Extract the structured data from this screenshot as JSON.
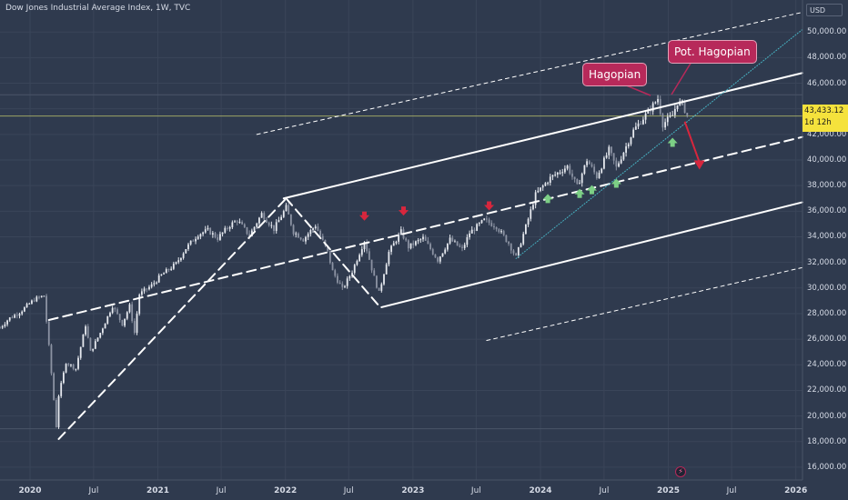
{
  "header": {
    "title": "Dow Jones Industrial Average Index, 1W, TVC",
    "currency": "USD"
  },
  "price_box": {
    "price": "43,433.12",
    "countdown": "1d 12h"
  },
  "annotations": {
    "callout_left": "Hagopian",
    "callout_right": "Pot. Hagopian",
    "flash_icon": "lightning-icon"
  },
  "colors": {
    "background": "#2f3a4e",
    "channel": "#ffffff",
    "candle": "#e6e9ef",
    "down_arrow": "#d7263d",
    "up_arrow": "#7ccf85",
    "callout": "#b7295a",
    "price_line": "#9da466",
    "dotted_trend": "#46b0c0"
  },
  "chart_data": {
    "type": "candlestick",
    "title": "Dow Jones Industrial Average Index, 1W, TVC",
    "y_axis_unit": "USD",
    "ylim": [
      15000,
      52500
    ],
    "y_ticks": [
      "16,000.00",
      "18,000.00",
      "20,000.00",
      "22,000.00",
      "24,000.00",
      "26,000.00",
      "28,000.00",
      "30,000.00",
      "32,000.00",
      "34,000.00",
      "36,000.00",
      "38,000.00",
      "40,000.00",
      "42,000.00",
      "44,000.00",
      "46,000.00",
      "48,000.00",
      "50,000.00"
    ],
    "x_ticks": [
      {
        "label": "2020",
        "date": "2020-01-01",
        "year": true
      },
      {
        "label": "Jul",
        "date": "2020-07-01",
        "year": false
      },
      {
        "label": "2021",
        "date": "2021-01-01",
        "year": true
      },
      {
        "label": "Jul",
        "date": "2021-07-01",
        "year": false
      },
      {
        "label": "2022",
        "date": "2022-01-01",
        "year": true
      },
      {
        "label": "Jul",
        "date": "2022-07-01",
        "year": false
      },
      {
        "label": "2023",
        "date": "2023-01-01",
        "year": true
      },
      {
        "label": "Jul",
        "date": "2023-07-01",
        "year": false
      },
      {
        "label": "2024",
        "date": "2024-01-01",
        "year": true
      },
      {
        "label": "Jul",
        "date": "2024-07-01",
        "year": false
      },
      {
        "label": "2025",
        "date": "2025-01-01",
        "year": true
      },
      {
        "label": "Jul",
        "date": "2025-07-01",
        "year": false
      },
      {
        "label": "2026",
        "date": "2026-01-01",
        "year": true
      }
    ],
    "xlim": [
      "2019-10-07",
      "2026-01-20"
    ],
    "last_price": 43433.12,
    "grid": true,
    "weekly_closes": [
      {
        "date": "2019-10-07",
        "close": 26900
      },
      {
        "date": "2019-11-01",
        "close": 27600
      },
      {
        "date": "2019-12-02",
        "close": 28100
      },
      {
        "date": "2020-01-13",
        "close": 29100
      },
      {
        "date": "2020-02-10",
        "close": 29400
      },
      {
        "date": "2020-02-24",
        "close": 25400
      },
      {
        "date": "2020-03-16",
        "close": 19200
      },
      {
        "date": "2020-03-23",
        "close": 21600
      },
      {
        "date": "2020-04-13",
        "close": 24200
      },
      {
        "date": "2020-05-11",
        "close": 23700
      },
      {
        "date": "2020-06-08",
        "close": 27100
      },
      {
        "date": "2020-06-22",
        "close": 25000
      },
      {
        "date": "2020-07-20",
        "close": 26500
      },
      {
        "date": "2020-08-24",
        "close": 28600
      },
      {
        "date": "2020-09-21",
        "close": 27200
      },
      {
        "date": "2020-10-12",
        "close": 28600
      },
      {
        "date": "2020-10-26",
        "close": 26500
      },
      {
        "date": "2020-11-09",
        "close": 29500
      },
      {
        "date": "2020-12-14",
        "close": 30200
      },
      {
        "date": "2021-01-11",
        "close": 31000
      },
      {
        "date": "2021-02-22",
        "close": 31900
      },
      {
        "date": "2021-03-22",
        "close": 33100
      },
      {
        "date": "2021-04-26",
        "close": 34200
      },
      {
        "date": "2021-05-24",
        "close": 34500
      },
      {
        "date": "2021-06-21",
        "close": 33900
      },
      {
        "date": "2021-07-26",
        "close": 34900
      },
      {
        "date": "2021-08-16",
        "close": 35300
      },
      {
        "date": "2021-09-20",
        "close": 34100
      },
      {
        "date": "2021-10-25",
        "close": 35800
      },
      {
        "date": "2021-11-29",
        "close": 34600
      },
      {
        "date": "2022-01-03",
        "close": 36300
      },
      {
        "date": "2022-01-24",
        "close": 34400
      },
      {
        "date": "2022-02-21",
        "close": 33800
      },
      {
        "date": "2022-03-28",
        "close": 34900
      },
      {
        "date": "2022-05-02",
        "close": 32800
      },
      {
        "date": "2022-05-16",
        "close": 31300
      },
      {
        "date": "2022-06-13",
        "close": 29900
      },
      {
        "date": "2022-07-11",
        "close": 31300
      },
      {
        "date": "2022-08-15",
        "close": 33700
      },
      {
        "date": "2022-09-12",
        "close": 30800
      },
      {
        "date": "2022-09-26",
        "close": 29600
      },
      {
        "date": "2022-10-24",
        "close": 32800
      },
      {
        "date": "2022-11-28",
        "close": 34400
      },
      {
        "date": "2022-12-19",
        "close": 33200
      },
      {
        "date": "2023-01-30",
        "close": 33900
      },
      {
        "date": "2023-03-13",
        "close": 32200
      },
      {
        "date": "2023-04-17",
        "close": 33800
      },
      {
        "date": "2023-05-22",
        "close": 33000
      },
      {
        "date": "2023-06-12",
        "close": 34300
      },
      {
        "date": "2023-07-24",
        "close": 35300
      },
      {
        "date": "2023-08-28",
        "close": 34800
      },
      {
        "date": "2023-10-02",
        "close": 33500
      },
      {
        "date": "2023-10-23",
        "close": 32400
      },
      {
        "date": "2023-11-27",
        "close": 35400
      },
      {
        "date": "2023-12-18",
        "close": 37300
      },
      {
        "date": "2024-01-29",
        "close": 38600
      },
      {
        "date": "2024-03-18",
        "close": 39500
      },
      {
        "date": "2024-04-15",
        "close": 37900
      },
      {
        "date": "2024-05-13",
        "close": 40000
      },
      {
        "date": "2024-06-10",
        "close": 38700
      },
      {
        "date": "2024-07-15",
        "close": 40800
      },
      {
        "date": "2024-08-05",
        "close": 39400
      },
      {
        "date": "2024-09-23",
        "close": 42300
      },
      {
        "date": "2024-11-11",
        "close": 44000
      },
      {
        "date": "2024-12-02",
        "close": 44800
      },
      {
        "date": "2024-12-16",
        "close": 42800
      },
      {
        "date": "2025-01-13",
        "close": 43500
      },
      {
        "date": "2025-01-27",
        "close": 44500
      },
      {
        "date": "2025-02-10",
        "close": 44400
      },
      {
        "date": "2025-02-24",
        "close": 43433
      }
    ],
    "trendlines": [
      {
        "name": "upper-channel",
        "style": "solid",
        "from": {
          "date": "2021-12-27",
          "value": 37000
        },
        "to": {
          "date": "2026-01-20",
          "value": 46800
        }
      },
      {
        "name": "middle-channel",
        "style": "dashed",
        "from": {
          "date": "2020-02-24",
          "value": 27500
        },
        "to": {
          "date": "2026-01-20",
          "value": 41800
        }
      },
      {
        "name": "lower-channel",
        "style": "solid",
        "from": {
          "date": "2022-10-03",
          "value": 28500
        },
        "to": {
          "date": "2026-01-20",
          "value": 36700
        }
      },
      {
        "name": "outer-upper",
        "style": "dashed-thin",
        "from": {
          "date": "2021-10-11",
          "value": 42000
        },
        "to": {
          "date": "2026-01-13",
          "value": 51500
        }
      },
      {
        "name": "outer-lower",
        "style": "dashed-thin",
        "from": {
          "date": "2023-07-31",
          "value": 25900
        },
        "to": {
          "date": "2026-01-20",
          "value": 31600
        }
      },
      {
        "name": "covid-rally",
        "style": "dashed",
        "from": {
          "date": "2020-03-23",
          "value": 18200
        },
        "to": {
          "date": "2022-01-03",
          "value": 37000
        }
      },
      {
        "name": "2022-decline",
        "style": "dashed",
        "from": {
          "date": "2022-01-03",
          "value": 37000
        },
        "to": {
          "date": "2022-09-26",
          "value": 28600
        }
      },
      {
        "name": "dotted-trend",
        "style": "dotted",
        "from": {
          "date": "2023-10-23",
          "value": 32300
        },
        "to": {
          "date": "2026-01-20",
          "value": 50200
        }
      }
    ],
    "down_arrows": [
      {
        "date": "2022-08-15",
        "value": 35400
      },
      {
        "date": "2022-12-05",
        "value": 35800
      },
      {
        "date": "2023-08-07",
        "value": 36200
      }
    ],
    "up_arrows": [
      {
        "date": "2024-01-22",
        "value": 37200
      },
      {
        "date": "2024-04-22",
        "value": 37600
      },
      {
        "date": "2024-05-27",
        "value": 37900
      },
      {
        "date": "2024-08-05",
        "value": 38400
      },
      {
        "date": "2025-01-13",
        "value": 41600
      }
    ],
    "projection_arrow": {
      "from": {
        "date": "2025-02-17",
        "value": 43000
      },
      "to": {
        "date": "2025-03-31",
        "value": 39400
      }
    },
    "horizontal_lines": [
      {
        "name": "current-price",
        "value": 43433
      },
      {
        "name": "grid-line-a",
        "value": 45100
      },
      {
        "name": "grid-line-b",
        "value": 19000
      }
    ]
  }
}
